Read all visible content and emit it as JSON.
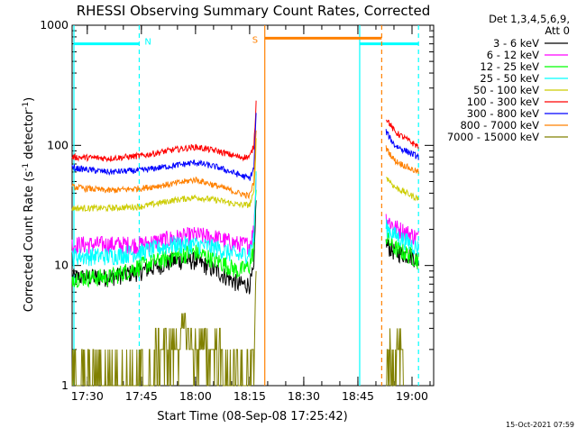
{
  "chart_data": {
    "type": "line",
    "title": "RHESSI Observing Summary Count Rates, Corrected",
    "xlabel": "Start Time (08-Sep-08 17:25:42)",
    "ylabel_main": "Corrected Count Rate (s",
    "ylabel_sup1": "-1",
    "ylabel_mid": " detector",
    "ylabel_sup2": "-1",
    "ylabel_end": ")",
    "y_scale": "log",
    "ylim": [
      1,
      1000
    ],
    "xlim_minutes": [
      17.43,
      19.1
    ],
    "x_ticks": [
      {
        "value": 17.5,
        "label": "17:30"
      },
      {
        "value": 17.75,
        "label": "17:45"
      },
      {
        "value": 18.0,
        "label": "18:00"
      },
      {
        "value": 18.25,
        "label": "18:15"
      },
      {
        "value": 18.5,
        "label": "18:30"
      },
      {
        "value": 18.75,
        "label": "18:45"
      },
      {
        "value": 19.0,
        "label": "19:00"
      }
    ],
    "y_ticks": [
      {
        "value": 1,
        "label": "1"
      },
      {
        "value": 10,
        "label": "10"
      },
      {
        "value": 100,
        "label": "100"
      },
      {
        "value": 1000,
        "label": "1000"
      }
    ],
    "legend_header": [
      "Det 1,3,4,5,6,9,",
      "Att 0"
    ],
    "legend_placement": "right",
    "series": [
      {
        "name": "3 - 6 keV",
        "color": "#000000",
        "pre": [
          [
            17.43,
            8
          ],
          [
            17.6,
            8
          ],
          [
            17.75,
            9
          ],
          [
            17.9,
            11
          ],
          [
            18.0,
            11
          ],
          [
            18.1,
            9
          ],
          [
            18.2,
            7
          ],
          [
            18.25,
            7
          ],
          [
            18.27,
            9
          ],
          [
            18.28,
            40
          ]
        ],
        "post": [
          [
            18.88,
            15
          ],
          [
            18.92,
            13
          ],
          [
            19.0,
            12
          ],
          [
            19.03,
            11
          ]
        ]
      },
      {
        "name": "6 - 12 keV",
        "color": "#ff00ff",
        "pre": [
          [
            17.43,
            15
          ],
          [
            17.6,
            15
          ],
          [
            17.75,
            15
          ],
          [
            17.9,
            17
          ],
          [
            18.0,
            18
          ],
          [
            18.1,
            17
          ],
          [
            18.2,
            15
          ],
          [
            18.25,
            15
          ],
          [
            18.27,
            20
          ],
          [
            18.28,
            60
          ]
        ],
        "post": [
          [
            18.88,
            25
          ],
          [
            18.92,
            21
          ],
          [
            19.0,
            18
          ],
          [
            19.03,
            17
          ]
        ]
      },
      {
        "name": "12 - 25 keV",
        "color": "#00ff00",
        "pre": [
          [
            17.43,
            8
          ],
          [
            17.6,
            8
          ],
          [
            17.75,
            10
          ],
          [
            17.9,
            12
          ],
          [
            18.0,
            13
          ],
          [
            18.1,
            11
          ],
          [
            18.2,
            9
          ],
          [
            18.25,
            10
          ],
          [
            18.27,
            14
          ],
          [
            18.28,
            50
          ]
        ],
        "post": [
          [
            18.88,
            17
          ],
          [
            18.92,
            14
          ],
          [
            19.0,
            12
          ],
          [
            19.03,
            11
          ]
        ]
      },
      {
        "name": "25 - 50 keV",
        "color": "#00ffff",
        "pre": [
          [
            17.43,
            12
          ],
          [
            17.6,
            12
          ],
          [
            17.75,
            13
          ],
          [
            17.9,
            15
          ],
          [
            18.0,
            15
          ],
          [
            18.1,
            14
          ],
          [
            18.2,
            12
          ],
          [
            18.25,
            13
          ],
          [
            18.27,
            17
          ],
          [
            18.28,
            55
          ]
        ],
        "post": [
          [
            18.88,
            21
          ],
          [
            18.92,
            18
          ],
          [
            19.0,
            15
          ],
          [
            19.03,
            14
          ]
        ]
      },
      {
        "name": "50 - 100 keV",
        "color": "#cccc00",
        "pre": [
          [
            17.43,
            30
          ],
          [
            17.6,
            30
          ],
          [
            17.75,
            31
          ],
          [
            17.9,
            35
          ],
          [
            18.0,
            37
          ],
          [
            18.1,
            35
          ],
          [
            18.2,
            32
          ],
          [
            18.25,
            32
          ],
          [
            18.27,
            40
          ],
          [
            18.28,
            110
          ]
        ],
        "post": [
          [
            18.88,
            55
          ],
          [
            18.92,
            45
          ],
          [
            19.0,
            38
          ],
          [
            19.03,
            36
          ]
        ]
      },
      {
        "name": "100 - 300 keV",
        "color": "#ff0000",
        "pre": [
          [
            17.43,
            80
          ],
          [
            17.6,
            78
          ],
          [
            17.75,
            82
          ],
          [
            17.9,
            92
          ],
          [
            18.0,
            97
          ],
          [
            18.1,
            90
          ],
          [
            18.2,
            80
          ],
          [
            18.25,
            80
          ],
          [
            18.27,
            100
          ],
          [
            18.28,
            230
          ]
        ],
        "post": [
          [
            18.88,
            170
          ],
          [
            18.92,
            130
          ],
          [
            19.0,
            105
          ],
          [
            19.03,
            98
          ]
        ]
      },
      {
        "name": "300 - 800 keV",
        "color": "#0000ff",
        "pre": [
          [
            17.43,
            65
          ],
          [
            17.6,
            60
          ],
          [
            17.75,
            62
          ],
          [
            17.9,
            68
          ],
          [
            18.0,
            72
          ],
          [
            18.1,
            66
          ],
          [
            18.2,
            57
          ],
          [
            18.25,
            53
          ],
          [
            18.27,
            65
          ],
          [
            18.28,
            190
          ]
        ],
        "post": [
          [
            18.88,
            130
          ],
          [
            18.92,
            100
          ],
          [
            19.0,
            85
          ],
          [
            19.03,
            80
          ]
        ]
      },
      {
        "name": "800 - 7000 keV",
        "color": "#ff8000",
        "pre": [
          [
            17.43,
            45
          ],
          [
            17.6,
            42
          ],
          [
            17.75,
            44
          ],
          [
            17.9,
            48
          ],
          [
            18.0,
            52
          ],
          [
            18.1,
            46
          ],
          [
            18.2,
            40
          ],
          [
            18.25,
            38
          ],
          [
            18.27,
            50
          ],
          [
            18.28,
            140
          ]
        ],
        "post": [
          [
            18.88,
            95
          ],
          [
            18.92,
            75
          ],
          [
            19.0,
            63
          ],
          [
            19.03,
            60
          ]
        ]
      },
      {
        "name": "7000 - 15000 keV",
        "color": "#808000",
        "pre": [
          [
            17.43,
            1
          ],
          [
            17.8,
            1
          ],
          [
            17.82,
            2
          ],
          [
            17.9,
            2
          ],
          [
            17.95,
            3
          ],
          [
            18.0,
            2
          ],
          [
            18.1,
            2
          ],
          [
            18.15,
            1
          ],
          [
            18.25,
            1
          ],
          [
            18.27,
            2
          ],
          [
            18.28,
            8
          ]
        ],
        "post": [
          [
            18.88,
            1
          ],
          [
            18.9,
            2
          ],
          [
            18.95,
            2
          ],
          [
            18.96,
            1
          ]
        ]
      }
    ],
    "annotations": {
      "night_label": "N",
      "saa_label": "S",
      "night_bar_y": 700,
      "saa_bar_y": 780,
      "night_color": "#00ffff",
      "saa_color": "#ff8000",
      "night_intervals": [
        [
          17.43,
          17.74
        ],
        [
          18.75,
          19.03
        ]
      ],
      "saa_interval": [
        18.32,
        18.86
      ]
    },
    "footer_timestamp": "15-Oct-2021 07:59"
  }
}
